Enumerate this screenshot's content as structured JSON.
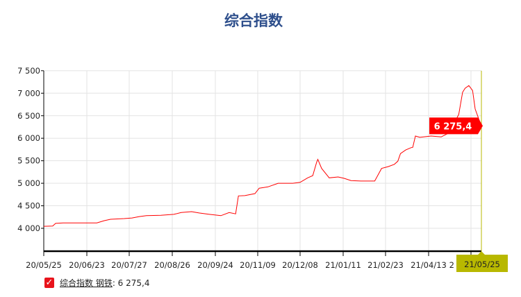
{
  "chart_data": {
    "type": "line",
    "title": "综合指数",
    "ylim": [
      3500,
      7500
    ],
    "y_ticks": [
      4000,
      4500,
      5000,
      5500,
      6000,
      6500,
      7000,
      7500
    ],
    "y_tick_labels": [
      "4 000",
      "4 500",
      "5 000",
      "5 500",
      "6 000",
      "6 500",
      "7 000",
      "7 500"
    ],
    "x_tick_labels": [
      "20/05/25",
      "20/06/23",
      "20/07/27",
      "20/08/26",
      "20/09/24",
      "20/11/09",
      "20/12/08",
      "21/01/11",
      "21/02/23",
      "21/04/13",
      "2"
    ],
    "grid": true,
    "line_color": "#ff0000",
    "series": [
      {
        "name": "综合指数 钢铁",
        "points": [
          [
            "2020-05-25",
            4045
          ],
          [
            "2020-05-31",
            4050
          ],
          [
            "2020-06-02",
            4110
          ],
          [
            "2020-06-07",
            4120
          ],
          [
            "2020-06-21",
            4120
          ],
          [
            "2020-07-01",
            4120
          ],
          [
            "2020-07-07",
            4170
          ],
          [
            "2020-07-12",
            4200
          ],
          [
            "2020-07-23",
            4215
          ],
          [
            "2020-07-29",
            4230
          ],
          [
            "2020-08-03",
            4260
          ],
          [
            "2020-08-08",
            4280
          ],
          [
            "2020-08-18",
            4290
          ],
          [
            "2020-08-27",
            4310
          ],
          [
            "2020-09-01",
            4350
          ],
          [
            "2020-09-08",
            4370
          ],
          [
            "2020-09-13",
            4340
          ],
          [
            "2020-09-20",
            4310
          ],
          [
            "2020-09-30",
            4280
          ],
          [
            "2020-10-09",
            4350
          ],
          [
            "2020-10-16",
            4320
          ],
          [
            "2020-10-19",
            4720
          ],
          [
            "2020-10-26",
            4725
          ],
          [
            "2020-11-06",
            4770
          ],
          [
            "2020-11-10",
            4890
          ],
          [
            "2020-11-16",
            4920
          ],
          [
            "2020-11-23",
            5000
          ],
          [
            "2020-12-03",
            5000
          ],
          [
            "2020-12-08",
            5020
          ],
          [
            "2020-12-14",
            5120
          ],
          [
            "2020-12-18",
            5170
          ],
          [
            "2020-12-21",
            5460
          ],
          [
            "2020-12-22",
            5530
          ],
          [
            "2020-12-25",
            5330
          ],
          [
            "2020-12-31",
            5120
          ],
          [
            "2021-01-07",
            5140
          ],
          [
            "2021-01-12",
            5110
          ],
          [
            "2021-01-19",
            5060
          ],
          [
            "2021-01-29",
            5050
          ],
          [
            "2021-02-12",
            5050
          ],
          [
            "2021-02-19",
            5330
          ],
          [
            "2021-02-26",
            5370
          ],
          [
            "2021-03-05",
            5420
          ],
          [
            "2021-03-09",
            5490
          ],
          [
            "2021-03-12",
            5660
          ],
          [
            "2021-03-18",
            5740
          ],
          [
            "2021-03-24",
            5790
          ],
          [
            "2021-03-26",
            5800
          ],
          [
            "2021-03-29",
            6050
          ],
          [
            "2021-04-03",
            6020
          ],
          [
            "2021-04-15",
            6050
          ],
          [
            "2021-04-23",
            6030
          ],
          [
            "2021-04-28",
            6100
          ],
          [
            "2021-05-04",
            6370
          ],
          [
            "2021-05-07",
            6530
          ],
          [
            "2021-05-10",
            7020
          ],
          [
            "2021-05-12",
            7110
          ],
          [
            "2021-05-15",
            7170
          ],
          [
            "2021-05-18",
            7060
          ],
          [
            "2021-05-20",
            6650
          ],
          [
            "2021-05-23",
            6420
          ],
          [
            "2021-05-25",
            6275.4
          ]
        ]
      }
    ],
    "highlight": {
      "date_label": "21/05/25",
      "value_label": "6 275,4",
      "box_color": "#ff0000",
      "axis_box_color": "#b8b800"
    }
  },
  "legend": {
    "checked": true,
    "check_glyph": "✓",
    "name": "综合指数 钢铁",
    "value": ": 6 275,4"
  }
}
